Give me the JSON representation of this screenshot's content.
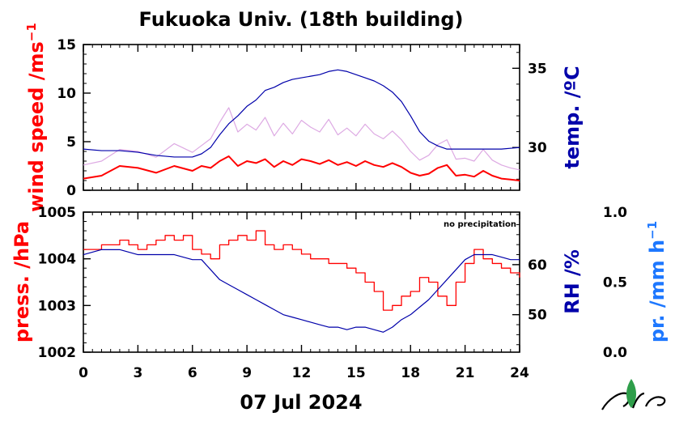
{
  "title": "Fukuoka Univ. (18th building)",
  "date_label": "07 Jul 2024",
  "colors": {
    "wind": "#ff0000",
    "wind_gust": "#d9a0e0",
    "temp": "#0000aa",
    "pressure": "#ff0000",
    "rh": "#0000aa",
    "precip": "#1e78ff",
    "logo_green": "#2e9e4a"
  },
  "chart_data": [
    {
      "type": "line",
      "panel": "top",
      "x_ticks": [
        "0",
        "3",
        "6",
        "9",
        "12",
        "15",
        "18",
        "21",
        "24"
      ],
      "xlim": [
        0,
        24
      ],
      "left_axis": {
        "label": "wind speed /ms",
        "label_superscript": "−1",
        "ylim": [
          0,
          15
        ],
        "ticks": [
          "0",
          "5",
          "10",
          "15"
        ]
      },
      "right_axis": {
        "label": "temp. /ºC",
        "ylim": [
          27.3,
          36.5
        ],
        "ticks": [
          "30",
          "35"
        ]
      },
      "series": [
        {
          "axis": "left",
          "x": [
            0,
            1,
            2,
            3,
            4,
            5,
            6,
            6.5,
            7,
            7.5,
            8,
            8.5,
            9,
            9.5,
            10,
            10.5,
            11,
            11.5,
            12,
            12.5,
            13,
            13.5,
            14,
            14.5,
            15,
            15.5,
            16,
            16.5,
            17,
            17.5,
            18,
            18.5,
            19,
            19.5,
            20,
            20.5,
            21,
            21.5,
            22,
            22.5,
            23,
            23.5,
            24
          ],
          "values": [
            1.2,
            1.5,
            2.5,
            2.3,
            1.8,
            2.5,
            2.0,
            2.5,
            2.3,
            3.0,
            3.5,
            2.5,
            3.0,
            2.8,
            3.2,
            2.4,
            3.0,
            2.6,
            3.2,
            3.0,
            2.7,
            3.1,
            2.6,
            2.9,
            2.5,
            3.0,
            2.6,
            2.4,
            2.8,
            2.4,
            1.8,
            1.5,
            1.7,
            2.3,
            2.6,
            1.5,
            1.6,
            1.4,
            2.0,
            1.5,
            1.2,
            1.1,
            1.0
          ]
        },
        {
          "axis": "left",
          "x": [
            0,
            1,
            2,
            3,
            4,
            5,
            6,
            6.5,
            7,
            7.5,
            8,
            8.5,
            9,
            9.5,
            10,
            10.5,
            11,
            11.5,
            12,
            12.5,
            13,
            13.5,
            14,
            14.5,
            15,
            15.5,
            16,
            16.5,
            17,
            17.5,
            18,
            18.5,
            19,
            19.5,
            20,
            20.5,
            21,
            21.5,
            22,
            22.5,
            23,
            23.5,
            24
          ],
          "values": [
            2.6,
            3.0,
            4.2,
            4.0,
            3.4,
            4.8,
            3.9,
            4.6,
            5.3,
            7.0,
            8.5,
            6.0,
            6.8,
            6.2,
            7.5,
            5.6,
            6.9,
            5.8,
            7.2,
            6.5,
            6.0,
            7.3,
            5.7,
            6.4,
            5.6,
            6.8,
            5.8,
            5.3,
            6.1,
            5.2,
            4.0,
            3.1,
            3.6,
            4.7,
            5.2,
            3.2,
            3.3,
            3.0,
            4.2,
            3.1,
            2.6,
            2.3,
            2.1
          ]
        },
        {
          "axis": "right",
          "x": [
            0,
            1,
            2,
            3,
            4,
            5,
            6,
            6.5,
            7,
            7.5,
            8,
            8.5,
            9,
            9.5,
            10,
            10.5,
            11,
            11.5,
            12,
            12.5,
            13,
            13.5,
            14,
            14.5,
            15,
            15.5,
            16,
            16.5,
            17,
            17.5,
            18,
            18.5,
            19,
            19.5,
            20,
            21,
            22,
            23,
            24
          ],
          "values": [
            29.9,
            29.8,
            29.8,
            29.7,
            29.5,
            29.4,
            29.4,
            29.6,
            30.0,
            30.8,
            31.5,
            32.0,
            32.6,
            33.0,
            33.6,
            33.8,
            34.1,
            34.3,
            34.4,
            34.5,
            34.6,
            34.8,
            34.9,
            34.8,
            34.6,
            34.4,
            34.2,
            33.9,
            33.5,
            32.9,
            32.0,
            31.0,
            30.4,
            30.1,
            29.9,
            29.9,
            29.9,
            29.9,
            30.0
          ]
        }
      ]
    },
    {
      "type": "line",
      "panel": "bottom",
      "x_ticks": [
        "0",
        "3",
        "6",
        "9",
        "12",
        "15",
        "18",
        "21",
        "24"
      ],
      "xlim": [
        0,
        24
      ],
      "annotation": "no precipitation",
      "left_axis": {
        "label": "press. /hPa",
        "ylim": [
          1002,
          1005
        ],
        "ticks": [
          "1002",
          "1003",
          "1004",
          "1005"
        ]
      },
      "right_axis": {
        "label": "RH /%",
        "ylim": [
          42.5,
          70.5
        ],
        "ticks": [
          "50",
          "60"
        ]
      },
      "far_right_axis": {
        "label": "pr. /mm h",
        "label_superscript": "−1",
        "ylim": [
          0,
          1
        ],
        "ticks": [
          "0.0",
          "0.5",
          "1.0"
        ]
      },
      "series": [
        {
          "axis": "left",
          "x": [
            0,
            1,
            2,
            2.5,
            3,
            3.5,
            4,
            4.5,
            5,
            5.5,
            6,
            6.5,
            7,
            7.5,
            8,
            8.5,
            9,
            9.5,
            10,
            10.5,
            11,
            11.5,
            12,
            12.5,
            13,
            13.5,
            14,
            14.5,
            15,
            15.5,
            16,
            16.5,
            17,
            17.5,
            18,
            18.5,
            19,
            19.5,
            20,
            20.5,
            21,
            21.5,
            22,
            22.5,
            23,
            23.5,
            24
          ],
          "values": [
            1004.2,
            1004.3,
            1004.4,
            1004.3,
            1004.2,
            1004.3,
            1004.4,
            1004.5,
            1004.4,
            1004.5,
            1004.2,
            1004.1,
            1004.0,
            1004.3,
            1004.4,
            1004.5,
            1004.4,
            1004.6,
            1004.3,
            1004.2,
            1004.3,
            1004.2,
            1004.1,
            1004.0,
            1004.0,
            1003.9,
            1003.9,
            1003.8,
            1003.7,
            1003.5,
            1003.3,
            1002.9,
            1003.0,
            1003.2,
            1003.3,
            1003.6,
            1003.5,
            1003.2,
            1003.0,
            1003.5,
            1003.9,
            1004.2,
            1004.0,
            1003.9,
            1003.8,
            1003.7,
            1003.6
          ]
        },
        {
          "axis": "right",
          "x": [
            0,
            1,
            2,
            3,
            4,
            5,
            6,
            6.5,
            7,
            7.5,
            8,
            8.5,
            9,
            9.5,
            10,
            10.5,
            11,
            11.5,
            12,
            12.5,
            13,
            13.5,
            14,
            14.5,
            15,
            15.5,
            16,
            16.5,
            17,
            17.5,
            18,
            18.5,
            19,
            19.5,
            20,
            20.5,
            21,
            21.5,
            22,
            22.5,
            23,
            23.5,
            24
          ],
          "values": [
            62,
            63,
            63,
            62,
            62,
            62,
            61,
            61,
            59,
            57,
            56,
            55,
            54,
            53,
            52,
            51,
            50,
            49.5,
            49,
            48.5,
            48,
            47.5,
            47.5,
            47,
            47.5,
            47.5,
            47,
            46.5,
            47.5,
            49,
            50,
            51.5,
            53,
            55,
            57,
            59,
            61,
            62,
            62,
            62,
            61.5,
            61,
            61
          ]
        }
      ]
    }
  ]
}
